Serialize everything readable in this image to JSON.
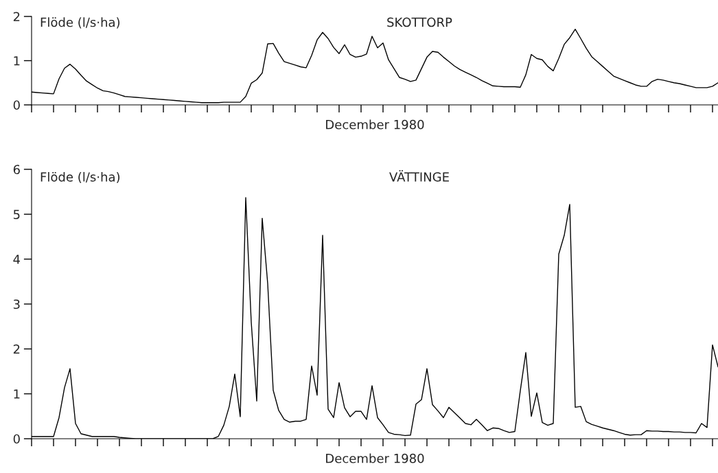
{
  "chart_data": [
    {
      "type": "line",
      "title": "SKOTTORP",
      "ylabel": "Flöde (l/s·ha)",
      "xlabel": "December 1980",
      "categories": [
        null,
        null,
        null,
        null,
        null,
        null,
        null,
        null,
        null,
        null,
        null,
        null,
        null,
        null,
        null,
        null,
        null,
        null,
        null,
        null,
        null,
        null,
        null,
        null,
        null,
        null,
        null,
        null,
        null,
        null,
        null,
        null,
        null,
        null,
        null,
        null,
        null,
        null,
        null,
        null,
        null,
        null,
        null,
        null,
        null,
        null,
        null,
        null,
        null,
        null,
        null,
        null,
        null,
        null,
        null,
        null,
        null,
        null,
        null,
        null,
        null,
        null,
        null,
        null,
        null,
        null,
        null,
        null,
        null,
        null,
        null,
        null,
        null,
        null,
        null,
        null,
        null,
        null,
        null,
        null,
        null,
        null,
        null,
        null,
        null,
        null,
        null,
        null,
        null,
        null,
        null,
        null,
        null,
        null,
        null,
        null,
        null,
        null,
        null,
        null,
        null,
        null,
        null,
        null,
        null,
        null,
        null,
        null,
        null,
        null,
        null,
        null,
        null,
        null,
        null,
        null,
        null,
        null,
        null,
        null,
        null,
        null,
        null,
        null,
        null,
        null
      ],
      "series": [
        {
          "color": "#000000",
          "values": [
            0.29,
            0.28,
            0.27,
            0.26,
            0.25,
            0.59,
            0.83,
            0.92,
            0.81,
            0.67,
            0.54,
            0.46,
            0.38,
            0.32,
            0.3,
            0.27,
            0.23,
            0.19,
            0.18,
            0.17,
            0.16,
            0.15,
            0.14,
            0.13,
            0.12,
            0.11,
            0.1,
            0.09,
            0.08,
            0.07,
            0.06,
            0.05,
            0.05,
            0.05,
            0.05,
            0.06,
            0.06,
            0.06,
            0.06,
            0.19,
            0.49,
            0.57,
            0.72,
            1.38,
            1.39,
            1.17,
            0.98,
            0.94,
            0.9,
            0.86,
            0.84,
            1.12,
            1.47,
            1.64,
            1.5,
            1.3,
            1.16,
            1.36,
            1.14,
            1.08,
            1.1,
            1.15,
            1.55,
            1.29,
            1.4,
            1.02,
            0.82,
            0.62,
            0.58,
            0.53,
            0.56,
            0.82,
            1.08,
            1.21,
            1.19,
            1.08,
            0.98,
            0.88,
            0.8,
            0.74,
            0.68,
            0.62,
            0.55,
            0.49,
            0.43,
            0.42,
            0.41,
            0.41,
            0.41,
            0.4,
            0.68,
            1.14,
            1.05,
            1.02,
            0.87,
            0.77,
            1.05,
            1.37,
            1.52,
            1.71,
            1.5,
            1.28,
            1.09,
            0.98,
            0.87,
            0.76,
            0.65,
            0.6,
            0.55,
            0.5,
            0.45,
            0.42,
            0.42,
            0.53,
            0.58,
            0.56,
            0.53,
            0.5,
            0.48,
            0.45,
            0.42,
            0.39,
            0.39,
            0.39,
            0.42,
            0.5
          ]
        }
      ],
      "ylim": [
        0,
        2
      ],
      "yticks": [
        0,
        1,
        2
      ],
      "marker": "none",
      "line_style": "solid"
    },
    {
      "type": "line",
      "title": "VÄTTINGE",
      "ylabel": "Flöde (l/s·ha)",
      "xlabel": "December 1980",
      "categories": [
        null,
        null,
        null,
        null,
        null,
        null,
        null,
        null,
        null,
        null,
        null,
        null,
        null,
        null,
        null,
        null,
        null,
        null,
        null,
        null,
        null,
        null,
        null,
        null,
        null,
        null,
        null,
        null,
        null,
        null,
        null,
        null,
        null,
        null,
        null,
        null,
        null,
        null,
        null,
        null,
        null,
        null,
        null,
        null,
        null,
        null,
        null,
        null,
        null,
        null,
        null,
        null,
        null,
        null,
        null,
        null,
        null,
        null,
        null,
        null,
        null,
        null,
        null,
        null,
        null,
        null,
        null,
        null,
        null,
        null,
        null,
        null,
        null,
        null,
        null,
        null,
        null,
        null,
        null,
        null,
        null,
        null,
        null,
        null,
        null,
        null,
        null,
        null,
        null,
        null,
        null,
        null,
        null,
        null,
        null,
        null,
        null,
        null,
        null,
        null,
        null,
        null,
        null,
        null,
        null,
        null,
        null,
        null,
        null,
        null,
        null,
        null,
        null,
        null,
        null,
        null,
        null,
        null,
        null,
        null,
        null,
        null,
        null,
        null,
        null,
        null
      ],
      "series": [
        {
          "color": "#000000",
          "values": [
            0.05,
            0.05,
            0.05,
            0.05,
            0.05,
            0.47,
            1.14,
            1.56,
            0.34,
            0.11,
            0.08,
            0.05,
            0.05,
            0.05,
            0.05,
            0.05,
            0.03,
            0.02,
            0.01,
            0,
            0,
            0,
            0,
            0,
            0,
            0,
            0,
            0,
            0,
            0,
            0,
            0,
            0,
            0,
            0.05,
            0.3,
            0.72,
            1.44,
            0.49,
            5.37,
            2.6,
            0.84,
            4.91,
            3.45,
            1.08,
            0.63,
            0.43,
            0.37,
            0.39,
            0.39,
            0.43,
            1.62,
            0.97,
            4.53,
            0.66,
            0.47,
            1.25,
            0.69,
            0.49,
            0.61,
            0.61,
            0.43,
            1.18,
            0.47,
            0.31,
            0.14,
            0.1,
            0.09,
            0.07,
            0.08,
            0.77,
            0.87,
            1.56,
            0.76,
            0.62,
            0.47,
            0.7,
            0.58,
            0.46,
            0.34,
            0.31,
            0.43,
            0.31,
            0.18,
            0.24,
            0.23,
            0.18,
            0.14,
            0.16,
            1.07,
            1.92,
            0.5,
            1.02,
            0.36,
            0.3,
            0.34,
            4.11,
            4.53,
            5.22,
            0.7,
            0.72,
            0.38,
            0.32,
            0.28,
            0.24,
            0.21,
            0.18,
            0.14,
            0.1,
            0.08,
            0.09,
            0.09,
            0.18,
            0.17,
            0.17,
            0.16,
            0.16,
            0.15,
            0.15,
            0.14,
            0.14,
            0.13,
            0.34,
            0.25,
            2.09,
            1.6
          ]
        }
      ],
      "ylim": [
        0,
        6
      ],
      "yticks": [
        0,
        1,
        2,
        3,
        4,
        5,
        6
      ],
      "marker": "none",
      "line_style": "solid"
    }
  ]
}
